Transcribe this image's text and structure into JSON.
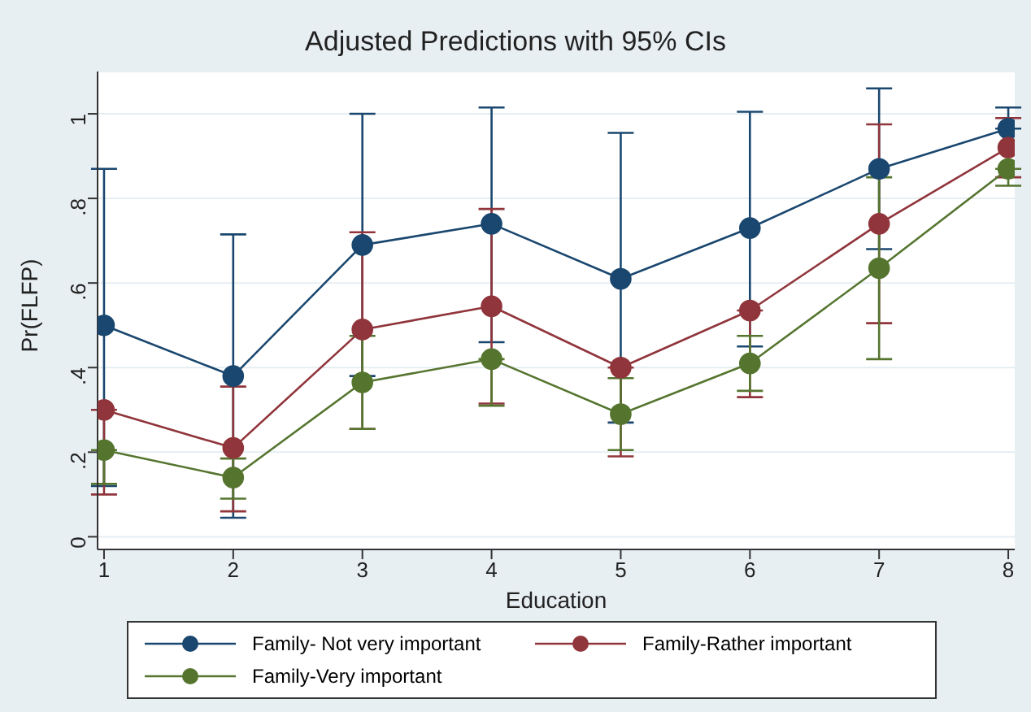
{
  "chart_data": {
    "type": "line",
    "title": "Adjusted Predictions with 95% CIs",
    "xlabel": "Education",
    "ylabel": "Pr(FLFP)",
    "x": [
      1,
      2,
      3,
      4,
      5,
      6,
      7,
      8
    ],
    "series": [
      {
        "name": "Family- Not very important",
        "color": "#1a476f",
        "values": [
          0.5,
          0.38,
          0.69,
          0.74,
          0.61,
          0.73,
          0.87,
          0.965
        ],
        "errors": [
          [
            0.12,
            0.87
          ],
          [
            0.045,
            0.715
          ],
          [
            0.38,
            1.0
          ],
          [
            0.46,
            1.015
          ],
          [
            0.27,
            0.955
          ],
          [
            0.45,
            1.005
          ],
          [
            0.68,
            1.06
          ],
          [
            0.965,
            1.015
          ]
        ]
      },
      {
        "name": "Family-Rather important",
        "color": "#90353b",
        "values": [
          0.3,
          0.21,
          0.49,
          0.545,
          0.4,
          0.535,
          0.74,
          0.92
        ],
        "errors": [
          [
            0.1,
            0.3
          ],
          [
            0.06,
            0.355
          ],
          [
            0.255,
            0.72
          ],
          [
            0.315,
            0.775
          ],
          [
            0.19,
            0.4
          ],
          [
            0.33,
            0.535
          ],
          [
            0.505,
            0.975
          ],
          [
            0.85,
            0.99
          ]
        ]
      },
      {
        "name": "Family-Very important",
        "color": "#55752f",
        "values": [
          0.205,
          0.14,
          0.365,
          0.42,
          0.29,
          0.41,
          0.635,
          0.87
        ],
        "errors": [
          [
            0.125,
            0.205
          ],
          [
            0.09,
            0.185
          ],
          [
            0.255,
            0.475
          ],
          [
            0.31,
            0.42
          ],
          [
            0.205,
            0.375
          ],
          [
            0.345,
            0.475
          ],
          [
            0.42,
            0.85
          ],
          [
            0.83,
            0.87
          ]
        ]
      }
    ],
    "xlim": [
      0.95,
      8.05
    ],
    "xticks": [
      1,
      2,
      3,
      4,
      5,
      6,
      7,
      8
    ],
    "ylim": [
      -0.03,
      1.1
    ],
    "yticks": [
      0,
      {
        "value": 0.2,
        "label": ".2"
      },
      {
        "value": 0.4,
        "label": ".4"
      },
      {
        "value": 0.6,
        "label": ".6"
      },
      {
        "value": 0.8,
        "label": ".8"
      },
      1
    ],
    "grid": "y",
    "legend": "bottom",
    "marker": "circle",
    "line_style": "solid"
  }
}
